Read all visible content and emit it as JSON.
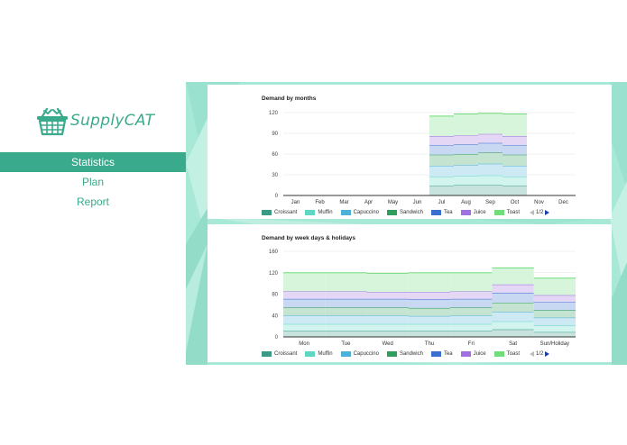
{
  "app": {
    "logo_text": "SupplyCAT"
  },
  "nav": {
    "items": [
      {
        "label": "Statistics",
        "active": true
      },
      {
        "label": "Plan",
        "active": false
      },
      {
        "label": "Report",
        "active": false
      }
    ]
  },
  "colors": {
    "accent": "#3aaa8c",
    "background_texture": "#a8e8d6"
  },
  "legend": {
    "items": [
      {
        "label": "Croissant",
        "color": "#3a9a86"
      },
      {
        "label": "Muffin",
        "color": "#5fd6c2"
      },
      {
        "label": "Capuccino",
        "color": "#4cb0d8"
      },
      {
        "label": "Sandwich",
        "color": "#2e9e5c"
      },
      {
        "label": "Tea",
        "color": "#3a6fd0"
      },
      {
        "label": "Juice",
        "color": "#a070e0"
      },
      {
        "label": "Toast",
        "color": "#70dc7a"
      }
    ],
    "page": "1/2"
  },
  "chart_data": [
    {
      "type": "area",
      "title": "Demand by months",
      "categories": [
        "Jan",
        "Feb",
        "Mar",
        "Apr",
        "May",
        "Jun",
        "Jul",
        "Aug",
        "Sep",
        "Oct",
        "Nov",
        "Dec"
      ],
      "ylim": [
        0,
        120
      ],
      "yticks": [
        0,
        30,
        60,
        90,
        120
      ],
      "stacked": true,
      "series": [
        {
          "name": "Croissant",
          "values": [
            0,
            0,
            0,
            0,
            0,
            0,
            14,
            15,
            15,
            14,
            0,
            0
          ]
        },
        {
          "name": "Muffin",
          "values": [
            0,
            0,
            0,
            0,
            0,
            0,
            13,
            13,
            14,
            13,
            0,
            0
          ]
        },
        {
          "name": "Capuccino",
          "values": [
            0,
            0,
            0,
            0,
            0,
            0,
            16,
            16,
            17,
            16,
            0,
            0
          ]
        },
        {
          "name": "Sandwich",
          "values": [
            0,
            0,
            0,
            0,
            0,
            0,
            16,
            16,
            16,
            16,
            0,
            0
          ]
        },
        {
          "name": "Tea",
          "values": [
            0,
            0,
            0,
            0,
            0,
            0,
            14,
            14,
            14,
            14,
            0,
            0
          ]
        },
        {
          "name": "Juice",
          "values": [
            0,
            0,
            0,
            0,
            0,
            0,
            13,
            13,
            13,
            13,
            0,
            0
          ]
        },
        {
          "name": "Toast",
          "values": [
            0,
            0,
            0,
            0,
            0,
            0,
            29,
            31,
            30,
            32,
            0,
            0
          ]
        }
      ]
    },
    {
      "type": "area",
      "title": "Demand by week days & holidays",
      "categories": [
        "Mon",
        "Tue",
        "Wed",
        "Thu",
        "Fri",
        "Sat",
        "Sun/Holiday"
      ],
      "ylim": [
        0,
        160
      ],
      "yticks": [
        0,
        40,
        80,
        120,
        160
      ],
      "stacked": true,
      "series": [
        {
          "name": "Croissant",
          "values": [
            11,
            11,
            11,
            11,
            11,
            14,
            9
          ]
        },
        {
          "name": "Muffin",
          "values": [
            13,
            13,
            13,
            13,
            13,
            15,
            12
          ]
        },
        {
          "name": "Capuccino",
          "values": [
            16,
            16,
            16,
            15,
            16,
            18,
            15
          ]
        },
        {
          "name": "Sandwich",
          "values": [
            15,
            15,
            15,
            15,
            15,
            17,
            14
          ]
        },
        {
          "name": "Tea",
          "values": [
            16,
            16,
            16,
            16,
            16,
            18,
            15
          ]
        },
        {
          "name": "Juice",
          "values": [
            14,
            14,
            13,
            14,
            14,
            16,
            13
          ]
        },
        {
          "name": "Toast",
          "values": [
            35,
            35,
            35,
            36,
            35,
            31,
            32
          ]
        }
      ]
    }
  ]
}
